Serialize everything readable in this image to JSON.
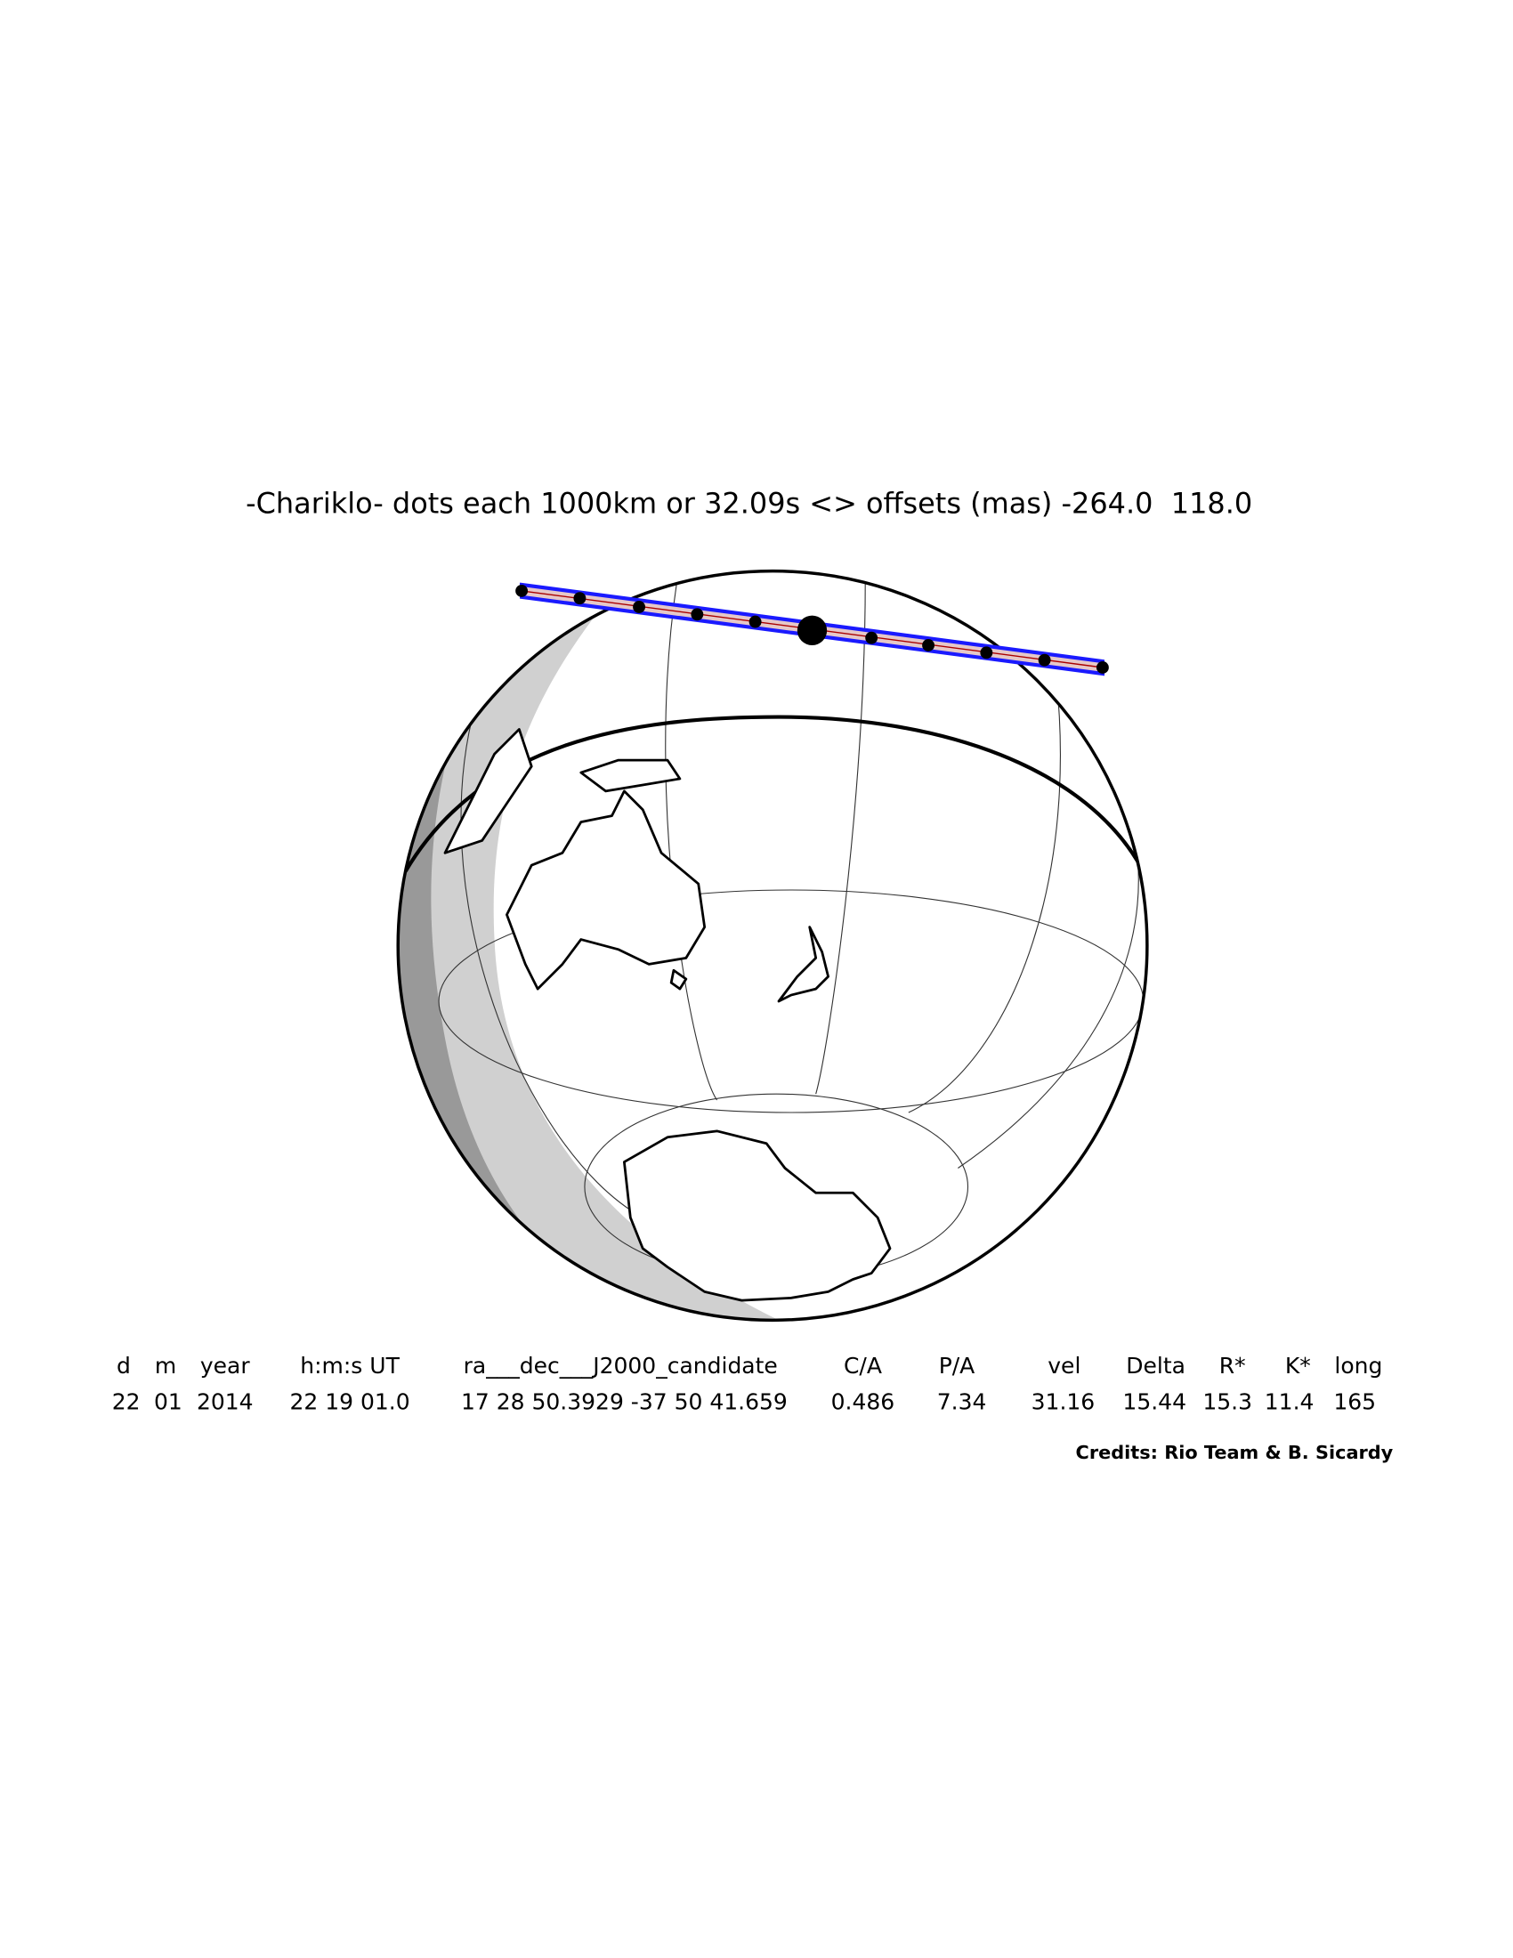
{
  "title": "-Chariklo- dots each 1000km or 32.09s <> offsets (mas) -264.0  118.0",
  "table": {
    "headers": [
      "d",
      "m",
      "year",
      "h:m:s UT",
      "ra___dec___J2000_candidate",
      "C/A",
      "P/A",
      "vel",
      "Delta",
      "R*",
      "K*",
      "long"
    ],
    "rows": [
      [
        "22",
        "01",
        "2014",
        "22 19 01.0",
        "17 28 50.3929 -37 50 41.659",
        "0.486",
        "7.34",
        "31.16",
        "15.44",
        "15.3",
        "11.4",
        "165"
      ]
    ]
  },
  "credits": "Credits: Rio Team & B. Sicardy"
}
